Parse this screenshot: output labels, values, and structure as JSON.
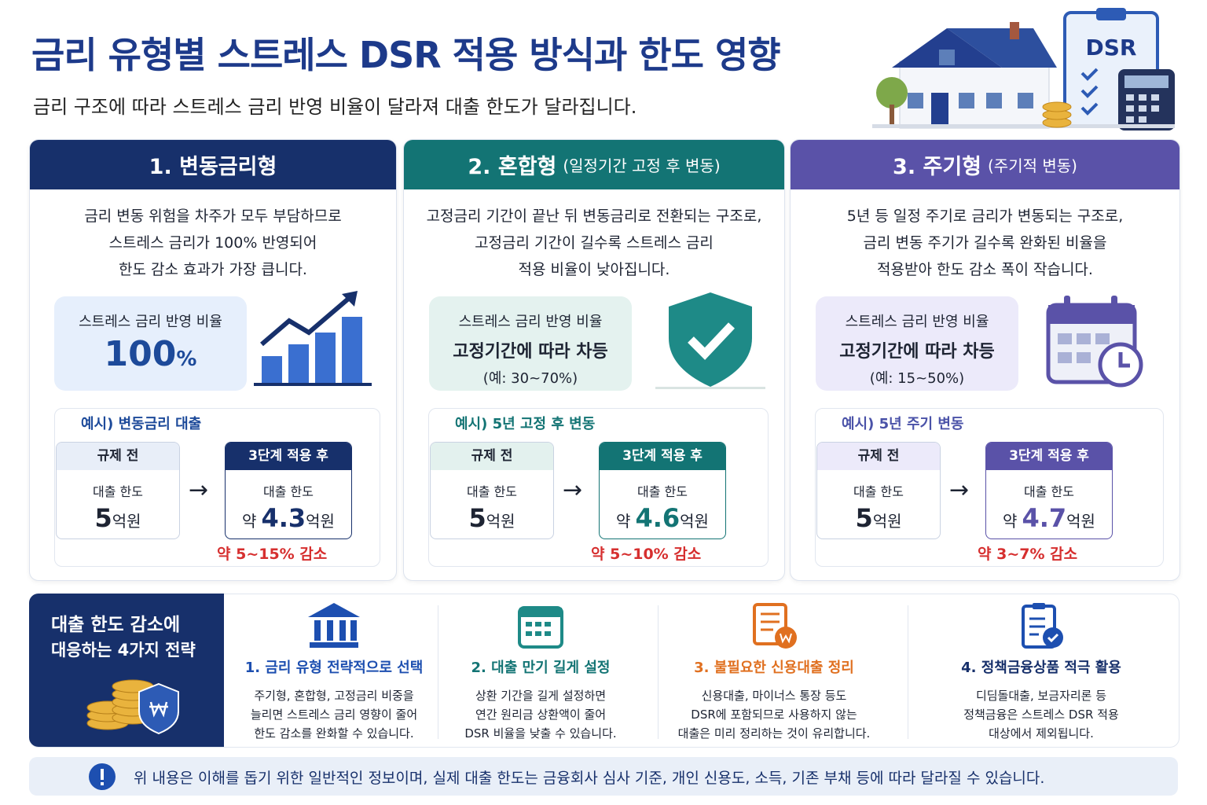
{
  "header": {
    "title": "금리 유형별 스트레스 DSR 적용 방식과 한도 영향",
    "subtitle": "금리 구조에 따라 스트레스 금리 반영 비율이 달라져 대출 한도가 달라집니다.",
    "illustration_label": "DSR"
  },
  "cards": [
    {
      "title": "1. 변동금리형",
      "description": [
        "금리 변동 위험을 차주가 모두 부담하므로",
        "스트레스 금리가 100% 반영되어",
        "한도 감소 효과가 가장 큽니다."
      ],
      "rate": {
        "label": "스트레스 금리 반영 비율",
        "value": "100",
        "unit": "%"
      },
      "example": {
        "title": "예시) 변동금리 대출",
        "before": {
          "tag": "규제 전",
          "label": "대출 한도",
          "amount": "5",
          "unit": "억원"
        },
        "after": {
          "tag": "3단계 적용 후",
          "label": "대출 한도",
          "prefix": "약",
          "amount": "4.3",
          "unit": "억원"
        },
        "change": "약 5~15% 감소"
      }
    },
    {
      "title": "2. 혼합형",
      "subtitle": "(일정기간 고정 후 변동)",
      "description": [
        "고정금리 기간이 끝난 뒤 변동금리로 전환되는 구조로,",
        "고정금리 기간이 길수록 스트레스 금리",
        "적용 비율이 낮아집니다."
      ],
      "rate": {
        "label": "스트레스 금리 반영 비율",
        "value": "고정기간에 따라 차등",
        "note": "(예: 30~70%)"
      },
      "example": {
        "title": "예시) 5년 고정 후 변동",
        "before": {
          "tag": "규제 전",
          "label": "대출 한도",
          "amount": "5",
          "unit": "억원"
        },
        "after": {
          "tag": "3단계 적용 후",
          "label": "대출 한도",
          "prefix": "약",
          "amount": "4.6",
          "unit": "억원"
        },
        "change": "약 5~10% 감소"
      }
    },
    {
      "title": "3. 주기형",
      "subtitle": "(주기적 변동)",
      "description": [
        "5년 등 일정 주기로 금리가 변동되는 구조로,",
        "금리 변동 주기가 길수록 완화된 비율을",
        "적용받아 한도 감소 폭이 작습니다."
      ],
      "rate": {
        "label": "스트레스 금리 반영 비율",
        "value": "고정기간에 따라 차등",
        "note": "(예: 15~50%)"
      },
      "example": {
        "title": "예시) 5년 주기 변동",
        "before": {
          "tag": "규제 전",
          "label": "대출 한도",
          "amount": "5",
          "unit": "억원"
        },
        "after": {
          "tag": "3단계 적용 후",
          "label": "대출 한도",
          "prefix": "약",
          "amount": "4.7",
          "unit": "억원"
        },
        "change": "약 3~7% 감소"
      }
    }
  ],
  "strategies": {
    "title": [
      "대출 한도 감소에",
      "대응하는 4가지 전략"
    ],
    "items": [
      {
        "title": "1. 금리 유형 전략적으로 선택",
        "lines": [
          "주기형, 혼합형, 고정금리 비중을",
          "늘리면 스트레스 금리 영향이 줄어",
          "한도 감소를 완화할 수 있습니다."
        ]
      },
      {
        "title": "2. 대출 만기 길게 설정",
        "lines": [
          "상환 기간을 길게 설정하면",
          "연간 원리금 상환액이 줄어",
          "DSR 비율을 낮출 수 있습니다."
        ]
      },
      {
        "title": "3. 불필요한 신용대출 정리",
        "lines": [
          "신용대출, 마이너스 통장 등도",
          "DSR에 포함되므로 사용하지 않는",
          "대출은 미리 정리하는 것이 유리합니다."
        ]
      },
      {
        "title": "4. 정책금융상품 적극 활용",
        "lines": [
          "디딤돌대출, 보금자리론 등",
          "정책금융은 스트레스 DSR 적용",
          "대상에서 제외됩니다."
        ]
      }
    ]
  },
  "notice": "위 내용은 이해를 돕기 위한 일반적인 정보이며, 실제 대출 한도는 금융회사 심사 기준, 개인 신용도, 소득, 기존 부채 등에 따라 달라질 수 있습니다."
}
